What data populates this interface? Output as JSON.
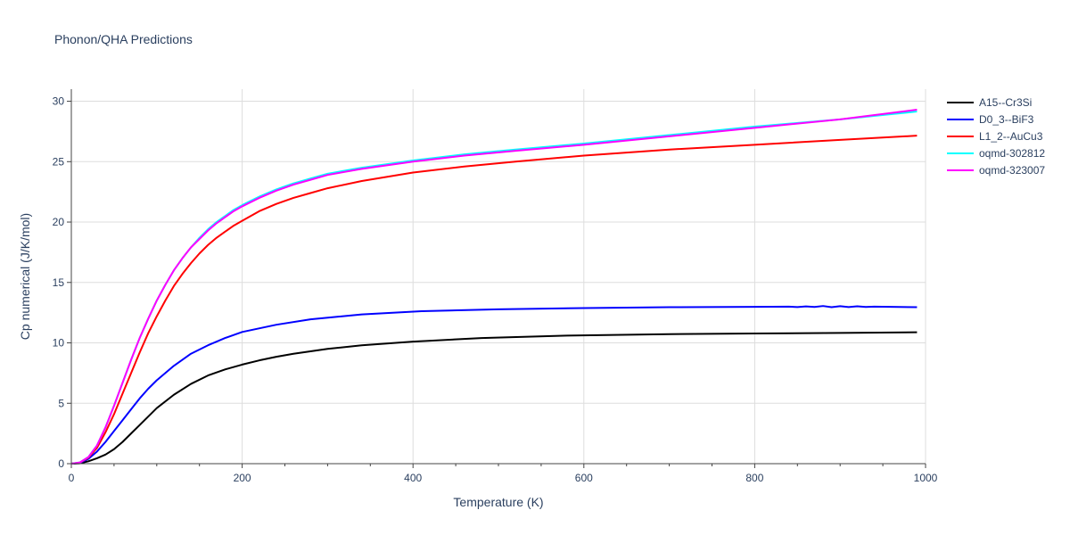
{
  "chart_data": {
    "type": "line",
    "title": "Phonon/QHA Predictions",
    "xlabel": "Temperature (K)",
    "ylabel": "Cp numerical (J/K/mol)",
    "xlim": [
      0,
      1000
    ],
    "ylim": [
      0,
      31
    ],
    "x_ticks": [
      0,
      200,
      400,
      600,
      800,
      1000
    ],
    "y_ticks": [
      0,
      5,
      10,
      15,
      20,
      25,
      30
    ],
    "grid": true,
    "legend_position": "right",
    "series": [
      {
        "name": "A15--Cr3Si",
        "color": "#000000",
        "x": [
          0,
          10,
          20,
          30,
          40,
          50,
          60,
          70,
          80,
          90,
          100,
          120,
          140,
          160,
          180,
          200,
          220,
          240,
          260,
          280,
          300,
          340,
          400,
          480,
          580,
          700,
          800,
          900,
          990
        ],
        "y": [
          0,
          0.03,
          0.2,
          0.45,
          0.75,
          1.2,
          1.8,
          2.5,
          3.2,
          3.9,
          4.6,
          5.7,
          6.6,
          7.3,
          7.8,
          8.2,
          8.55,
          8.85,
          9.1,
          9.3,
          9.5,
          9.8,
          10.1,
          10.4,
          10.6,
          10.72,
          10.78,
          10.82,
          10.88
        ]
      },
      {
        "name": "D0_3--BiF3",
        "color": "#0000ff",
        "x": [
          0,
          10,
          20,
          30,
          40,
          50,
          60,
          70,
          80,
          90,
          100,
          120,
          140,
          160,
          180,
          200,
          240,
          280,
          340,
          410,
          500,
          600,
          700,
          800,
          840,
          850,
          860,
          870,
          880,
          890,
          900,
          910,
          920,
          930,
          940,
          990
        ],
        "y": [
          0,
          0.06,
          0.4,
          1.0,
          1.8,
          2.7,
          3.6,
          4.5,
          5.4,
          6.2,
          6.9,
          8.1,
          9.1,
          9.8,
          10.4,
          10.9,
          11.5,
          11.95,
          12.35,
          12.62,
          12.78,
          12.88,
          12.95,
          12.98,
          13.0,
          12.96,
          13.02,
          12.97,
          13.05,
          12.95,
          13.04,
          12.96,
          13.03,
          12.97,
          13.0,
          12.95
        ]
      },
      {
        "name": "L1_2--AuCu3",
        "color": "#ff0000",
        "x": [
          0,
          10,
          20,
          30,
          40,
          50,
          60,
          70,
          80,
          90,
          100,
          110,
          120,
          130,
          140,
          150,
          160,
          170,
          180,
          190,
          200,
          220,
          240,
          260,
          280,
          300,
          340,
          400,
          460,
          520,
          600,
          700,
          800,
          900,
          990
        ],
        "y": [
          0,
          0.08,
          0.5,
          1.3,
          2.6,
          4.1,
          5.8,
          7.5,
          9.2,
          10.8,
          12.2,
          13.5,
          14.7,
          15.7,
          16.6,
          17.4,
          18.1,
          18.7,
          19.2,
          19.7,
          20.1,
          20.9,
          21.5,
          22.0,
          22.4,
          22.8,
          23.4,
          24.1,
          24.6,
          25.0,
          25.5,
          26.0,
          26.4,
          26.8,
          27.15
        ]
      },
      {
        "name": "oqmd-302812",
        "color": "#00ffff",
        "x": [
          0,
          10,
          20,
          30,
          40,
          50,
          60,
          70,
          80,
          90,
          100,
          110,
          120,
          130,
          140,
          150,
          160,
          170,
          180,
          190,
          200,
          220,
          240,
          260,
          280,
          300,
          340,
          400,
          460,
          520,
          600,
          700,
          800,
          900,
          990
        ],
        "y": [
          0,
          0.1,
          0.55,
          1.5,
          3.0,
          4.8,
          6.7,
          8.6,
          10.4,
          12.0,
          13.5,
          14.8,
          16.0,
          17.0,
          17.9,
          18.7,
          19.4,
          20.0,
          20.5,
          21.0,
          21.4,
          22.1,
          22.7,
          23.2,
          23.6,
          24.0,
          24.5,
          25.1,
          25.6,
          26.0,
          26.5,
          27.2,
          27.9,
          28.5,
          29.15
        ]
      },
      {
        "name": "oqmd-323007",
        "color": "#ff00ff",
        "x": [
          0,
          10,
          20,
          30,
          40,
          50,
          60,
          70,
          80,
          90,
          100,
          110,
          120,
          130,
          140,
          150,
          160,
          170,
          180,
          190,
          200,
          220,
          240,
          260,
          280,
          300,
          340,
          400,
          460,
          520,
          600,
          700,
          800,
          900,
          990
        ],
        "y": [
          0,
          0.1,
          0.55,
          1.5,
          3.0,
          4.8,
          6.7,
          8.6,
          10.4,
          12.0,
          13.5,
          14.8,
          16.0,
          17.0,
          17.9,
          18.6,
          19.3,
          19.9,
          20.4,
          20.9,
          21.3,
          22.0,
          22.6,
          23.1,
          23.5,
          23.9,
          24.4,
          25.0,
          25.5,
          25.9,
          26.4,
          27.1,
          27.8,
          28.5,
          29.3
        ]
      }
    ]
  }
}
